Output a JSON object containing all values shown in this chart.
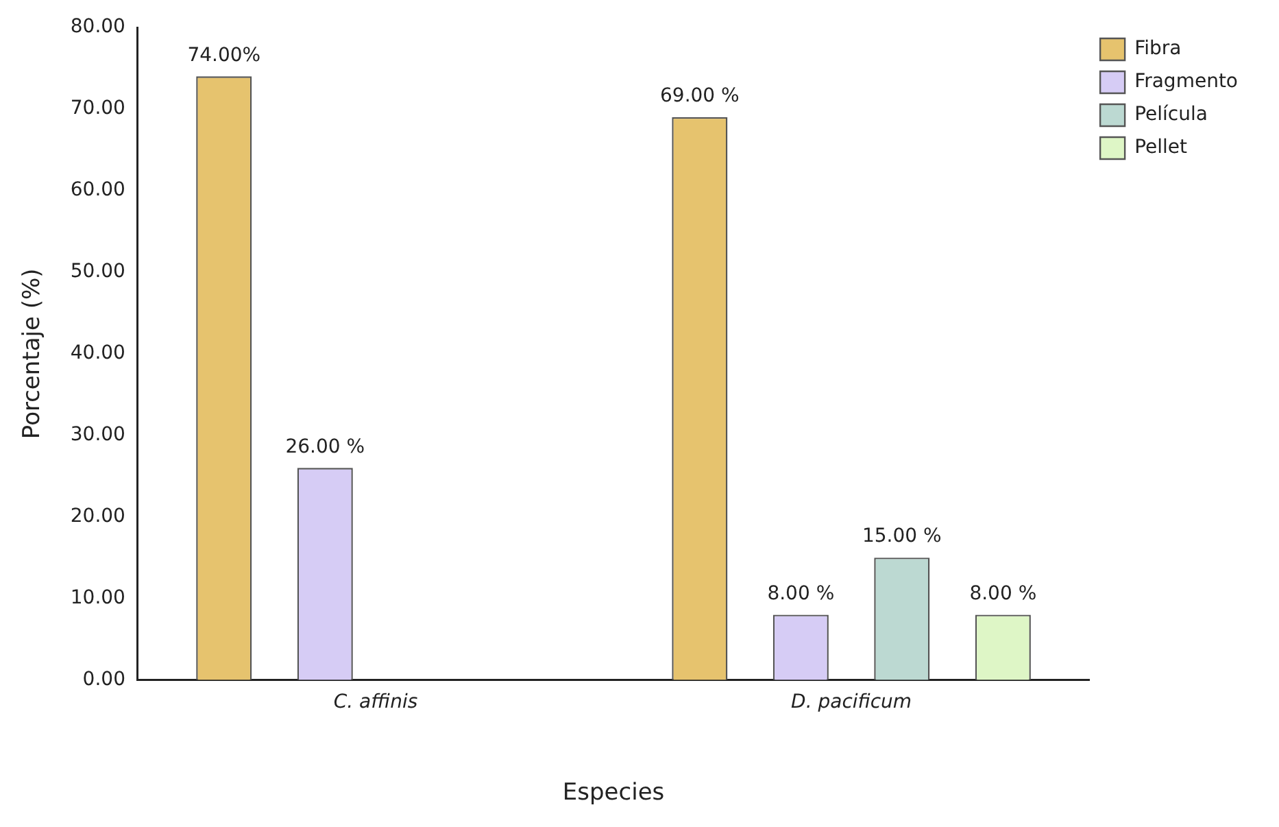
{
  "chart_data": {
    "type": "bar",
    "xlabel": "Especies",
    "ylabel": "Porcentaje (%)",
    "categories": [
      "C. affinis",
      "D. pacificum"
    ],
    "series": [
      {
        "name": "Fibra",
        "color": "#e6c36e",
        "values": [
          74,
          69
        ],
        "value_labels": [
          "74.00%",
          "69.00 %"
        ]
      },
      {
        "name": "Fragmento",
        "color": "#d6ccf5",
        "values": [
          26,
          8
        ],
        "value_labels": [
          "26.00 %",
          "8.00 %"
        ]
      },
      {
        "name": "Película",
        "color": "#bcd9d2",
        "values": [
          0,
          15
        ],
        "value_labels": [
          null,
          "15.00 %"
        ]
      },
      {
        "name": "Pellet",
        "color": "#def6c6",
        "values": [
          0,
          8
        ],
        "value_labels": [
          null,
          "8.00 %"
        ]
      }
    ],
    "ylim": [
      0,
      80
    ],
    "yticks": [
      {
        "value": 0,
        "label": "0.00"
      },
      {
        "value": 10,
        "label": "10.00"
      },
      {
        "value": 20,
        "label": "20.00"
      },
      {
        "value": 30,
        "label": "30.00"
      },
      {
        "value": 40,
        "label": "40.00"
      },
      {
        "value": 50,
        "label": "50.00"
      },
      {
        "value": 60,
        "label": "60.00"
      },
      {
        "value": 70,
        "label": "70.00"
      },
      {
        "value": 80,
        "label": "80.00"
      }
    ],
    "grid": false,
    "legend": "top right"
  }
}
